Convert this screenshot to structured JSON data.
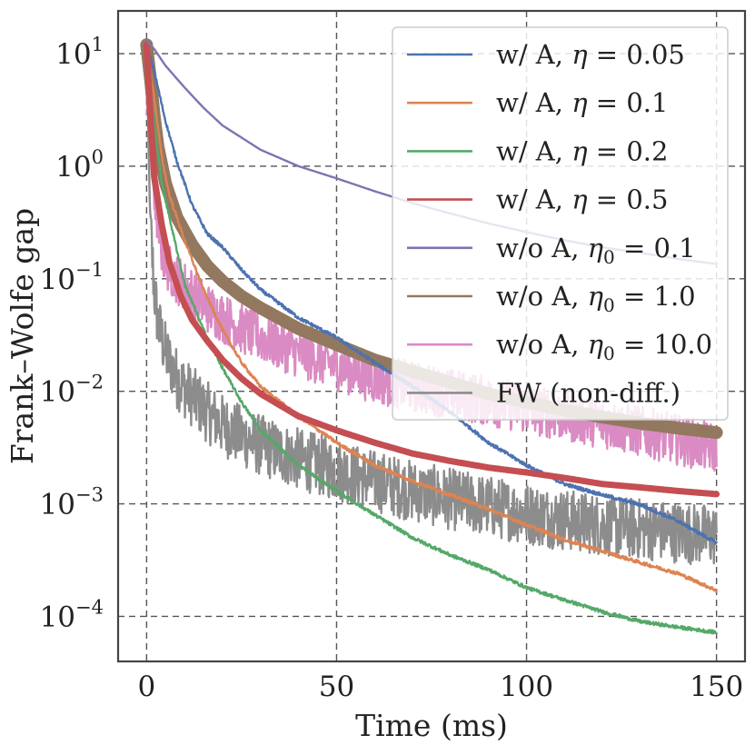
{
  "chart_data": {
    "type": "line",
    "xlabel": "Time (ms)",
    "ylabel": "Frank–Wolfe gap",
    "xlim": [
      -7.5,
      157.5
    ],
    "ylim_log10": [
      -4.4,
      1.38
    ],
    "yscale": "log",
    "grid": true,
    "legend_position": "top-right",
    "x_ticks": [
      {
        "value": 0,
        "label": "0"
      },
      {
        "value": 50,
        "label": "50"
      },
      {
        "value": 100,
        "label": "100"
      },
      {
        "value": 150,
        "label": "150"
      }
    ],
    "y_ticks": [
      {
        "exp": 1,
        "base": "10",
        "sup": "1"
      },
      {
        "exp": 0,
        "base": "10",
        "sup": "0"
      },
      {
        "exp": -1,
        "base": "10",
        "sup": "−1"
      },
      {
        "exp": -2,
        "base": "10",
        "sup": "−2"
      },
      {
        "exp": -3,
        "base": "10",
        "sup": "−3"
      },
      {
        "exp": -4,
        "base": "10",
        "sup": "−4"
      }
    ],
    "series": [
      {
        "name": "w/ A, η = 0.05",
        "legend_prefix": "w/ A, ",
        "legend_sym": "η",
        "legend_sub": "",
        "legend_suffix": " = 0.05",
        "color": "#4C72B0",
        "noise": 0.03,
        "x": [
          0,
          2,
          5,
          8,
          12,
          16,
          20,
          25,
          30,
          40,
          50,
          60,
          70,
          80,
          90,
          100,
          110,
          120,
          130,
          140,
          150
        ],
        "y": [
          12,
          7,
          2.5,
          1.1,
          0.45,
          0.25,
          0.19,
          0.12,
          0.08,
          0.045,
          0.03,
          0.018,
          0.011,
          0.0065,
          0.0035,
          0.0022,
          0.0015,
          0.0012,
          0.00098,
          0.0007,
          0.00045
        ]
      },
      {
        "name": "w/ A, η = 0.1",
        "legend_prefix": "w/ A, ",
        "legend_sym": "η",
        "legend_sub": "",
        "legend_suffix": " = 0.1",
        "color": "#DD8452",
        "noise": 0.03,
        "x": [
          0,
          2,
          4,
          6,
          10,
          15,
          20,
          25,
          30,
          40,
          50,
          60,
          70,
          80,
          90,
          100,
          110,
          120,
          130,
          140,
          150
        ],
        "y": [
          12,
          4,
          1.2,
          0.55,
          0.22,
          0.08,
          0.035,
          0.018,
          0.011,
          0.006,
          0.0035,
          0.0022,
          0.0016,
          0.0012,
          0.0009,
          0.00065,
          0.00048,
          0.00038,
          0.0003,
          0.00024,
          0.00017
        ]
      },
      {
        "name": "w/ A, η = 0.2",
        "legend_prefix": "w/ A, ",
        "legend_sym": "η",
        "legend_sub": "",
        "legend_suffix": " = 0.2",
        "color": "#55A868",
        "noise": 0.03,
        "x": [
          0,
          2,
          4,
          7,
          10,
          15,
          20,
          25,
          30,
          40,
          50,
          60,
          70,
          80,
          90,
          100,
          110,
          120,
          130,
          140,
          150
        ],
        "y": [
          12,
          2.5,
          0.7,
          0.25,
          0.09,
          0.035,
          0.016,
          0.008,
          0.0045,
          0.0022,
          0.0013,
          0.0008,
          0.0005,
          0.00035,
          0.00026,
          0.00018,
          0.00014,
          0.00011,
          9e-05,
          8e-05,
          7.2e-05
        ]
      },
      {
        "name": "w/ A, η = 0.5",
        "legend_prefix": "w/ A, ",
        "legend_sym": "η",
        "legend_sub": "",
        "legend_suffix": " = 0.5",
        "color": "#C44E52",
        "width": 7,
        "noise": 0,
        "x": [
          0,
          1,
          2,
          4,
          6,
          9,
          12,
          16,
          20,
          25,
          30,
          40,
          50,
          60,
          70,
          80,
          90,
          100,
          110,
          120,
          130,
          140,
          150
        ],
        "y": [
          12,
          2.8,
          0.8,
          0.3,
          0.14,
          0.07,
          0.043,
          0.028,
          0.019,
          0.013,
          0.0095,
          0.006,
          0.0045,
          0.0035,
          0.0028,
          0.0024,
          0.0021,
          0.0019,
          0.0017,
          0.0015,
          0.0014,
          0.0013,
          0.00122
        ]
      },
      {
        "name": "w/o A, η0 = 0.1",
        "legend_prefix": "w/o A, ",
        "legend_sym": "η",
        "legend_sub": "0",
        "legend_suffix": " = 0.1",
        "color": "#8172B3",
        "noise": 0,
        "x": [
          0,
          2,
          5,
          10,
          15,
          20,
          30,
          40,
          50,
          60,
          70,
          80,
          90,
          100,
          110,
          120,
          130,
          140,
          150
        ],
        "y": [
          13,
          11,
          7.8,
          5,
          3.3,
          2.3,
          1.4,
          1.0,
          0.78,
          0.6,
          0.47,
          0.38,
          0.31,
          0.26,
          0.22,
          0.19,
          0.17,
          0.15,
          0.135
        ]
      },
      {
        "name": "w/o A, η0 = 1.0",
        "legend_prefix": "w/o A, ",
        "legend_sym": "η",
        "legend_sub": "0",
        "legend_suffix": " = 1.0",
        "color": "#937860",
        "width": 14,
        "noise": 0,
        "x": [
          0,
          1,
          2,
          3,
          5,
          8,
          12,
          16,
          20,
          25,
          30,
          40,
          50,
          60,
          70,
          80,
          90,
          100,
          110,
          120,
          130,
          140,
          150
        ],
        "y": [
          12,
          6,
          2.8,
          1.5,
          0.7,
          0.35,
          0.2,
          0.13,
          0.095,
          0.07,
          0.055,
          0.036,
          0.026,
          0.019,
          0.015,
          0.012,
          0.0095,
          0.008,
          0.0068,
          0.0059,
          0.0052,
          0.0047,
          0.0043
        ]
      },
      {
        "name": "w/o A, η0 = 10.0",
        "legend_prefix": "w/o A, ",
        "legend_sym": "η",
        "legend_sub": "0",
        "legend_suffix": " = 10.0",
        "color": "#DA8BC3",
        "noise": 0.45,
        "x": [
          0,
          1,
          2,
          3,
          4,
          6,
          8,
          12,
          16,
          20,
          25,
          30,
          40,
          50,
          60,
          70,
          80,
          90,
          100,
          110,
          120,
          130,
          140,
          150
        ],
        "y": [
          4,
          1.5,
          0.6,
          0.3,
          0.18,
          0.12,
          0.1,
          0.075,
          0.055,
          0.045,
          0.036,
          0.03,
          0.022,
          0.017,
          0.013,
          0.011,
          0.0095,
          0.0082,
          0.007,
          0.006,
          0.0052,
          0.0044,
          0.0037,
          0.0031
        ]
      },
      {
        "name": "FW (non-diff.)",
        "legend_prefix": "FW (non-diff.)",
        "legend_sym": "",
        "legend_sub": "",
        "legend_suffix": "",
        "color": "#8C8C8C",
        "noise": 0.55,
        "x": [
          0,
          0.5,
          1,
          2,
          3,
          5,
          8,
          12,
          16,
          20,
          25,
          30,
          40,
          50,
          60,
          70,
          80,
          90,
          100,
          110,
          120,
          130,
          140,
          150
        ],
        "y": [
          12,
          1.5,
          0.3,
          0.08,
          0.04,
          0.022,
          0.013,
          0.009,
          0.0065,
          0.005,
          0.004,
          0.0033,
          0.0025,
          0.002,
          0.0016,
          0.0013,
          0.0011,
          0.00095,
          0.00082,
          0.00072,
          0.00065,
          0.0006,
          0.00056,
          0.00052
        ]
      }
    ]
  }
}
